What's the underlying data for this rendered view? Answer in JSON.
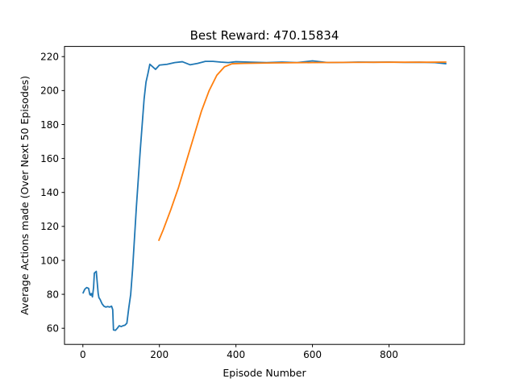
{
  "chart_data": {
    "type": "line",
    "title": "Best Reward:  470.15834",
    "xlabel": "Episode Number",
    "ylabel": "Average Actions made (Over Next 50 Episodes)",
    "xlim": [
      -48,
      997
    ],
    "ylim": [
      50.5,
      226
    ],
    "xticks": [
      0,
      200,
      400,
      600,
      800
    ],
    "yticks": [
      60,
      80,
      100,
      120,
      140,
      160,
      180,
      200,
      220
    ],
    "grid": false,
    "legend": "none",
    "series": [
      {
        "color": "#1f77b4",
        "x": [
          0,
          5,
          10,
          15,
          18,
          20,
          22,
          25,
          28,
          30,
          35,
          40,
          42,
          45,
          50,
          55,
          60,
          65,
          70,
          75,
          78,
          80,
          85,
          90,
          95,
          100,
          105,
          110,
          115,
          120,
          125,
          130,
          140,
          150,
          160,
          165,
          170,
          175,
          180,
          190,
          200,
          220,
          240,
          260,
          280,
          300,
          320,
          340,
          360,
          380,
          400,
          440,
          480,
          520,
          560,
          600,
          640,
          680,
          720,
          760,
          800,
          840,
          880,
          920,
          950
        ],
        "y": [
          80.5,
          83,
          84,
          83.5,
          80,
          79.5,
          80.5,
          78.5,
          84,
          92.5,
          93.5,
          80.5,
          78,
          77,
          74.5,
          73,
          72.5,
          72.8,
          72.5,
          73,
          71,
          59,
          58.8,
          60,
          61.5,
          61,
          61.5,
          61.8,
          63,
          72,
          80,
          95,
          132,
          165,
          195,
          205,
          210,
          215.5,
          214.5,
          212.5,
          215,
          215.5,
          216.5,
          217,
          215.2,
          216,
          217.2,
          217.2,
          216.8,
          216.5,
          217,
          216.7,
          216.5,
          216.8,
          216.5,
          217.5,
          216.5,
          216.6,
          216.8,
          216.7,
          216.8,
          216.6,
          216.7,
          216.5,
          215.8
        ]
      },
      {
        "color": "#ff7f0e",
        "x": [
          198,
          210,
          230,
          250,
          270,
          290,
          310,
          330,
          350,
          370,
          390,
          420,
          500,
          600,
          700,
          800,
          900,
          950
        ],
        "y": [
          111.5,
          118,
          130,
          143,
          158,
          173,
          188,
          200,
          209,
          214,
          215.8,
          216,
          216.3,
          216.5,
          216.6,
          216.7,
          216.7,
          216.8
        ]
      }
    ]
  }
}
